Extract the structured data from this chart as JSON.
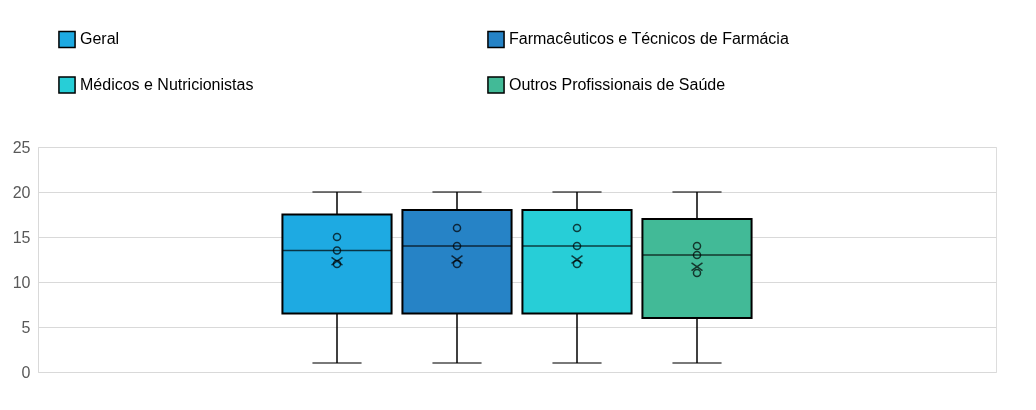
{
  "chart_data": {
    "type": "box",
    "categories": [
      null
    ],
    "ylim": [
      0,
      25
    ],
    "yticks": [
      0,
      5,
      10,
      15,
      20,
      25
    ],
    "grid": "y",
    "legend": "top",
    "series": [
      {
        "name": "Geral",
        "color": "#1eaae2",
        "boxes": [
          {
            "low": 1,
            "q1": 6.5,
            "median": 13.5,
            "q3": 17.5,
            "high": 20,
            "mean": 12.3,
            "outliers": [
              15,
              13.5,
              12
            ]
          }
        ]
      },
      {
        "name": "Farmacêuticos e Técnicos de Farmácia",
        "color": "#2683c6",
        "boxes": [
          {
            "low": 1,
            "q1": 6.5,
            "median": 14,
            "q3": 18,
            "high": 20,
            "mean": 12.5,
            "outliers": [
              16,
              14,
              12
            ]
          }
        ]
      },
      {
        "name": "Médicos e Nutricionistas",
        "color": "#27ced7",
        "boxes": [
          {
            "low": 1,
            "q1": 6.5,
            "median": 14,
            "q3": 18,
            "high": 20,
            "mean": 12.5,
            "outliers": [
              16,
              14,
              12
            ]
          }
        ]
      },
      {
        "name": "Outros Profissionais de Saúde",
        "color": "#42ba97",
        "boxes": [
          {
            "low": 1,
            "q1": 6,
            "median": 13,
            "q3": 17,
            "high": 20,
            "mean": 11.7,
            "outliers": [
              14,
              13,
              11
            ]
          }
        ]
      }
    ]
  }
}
